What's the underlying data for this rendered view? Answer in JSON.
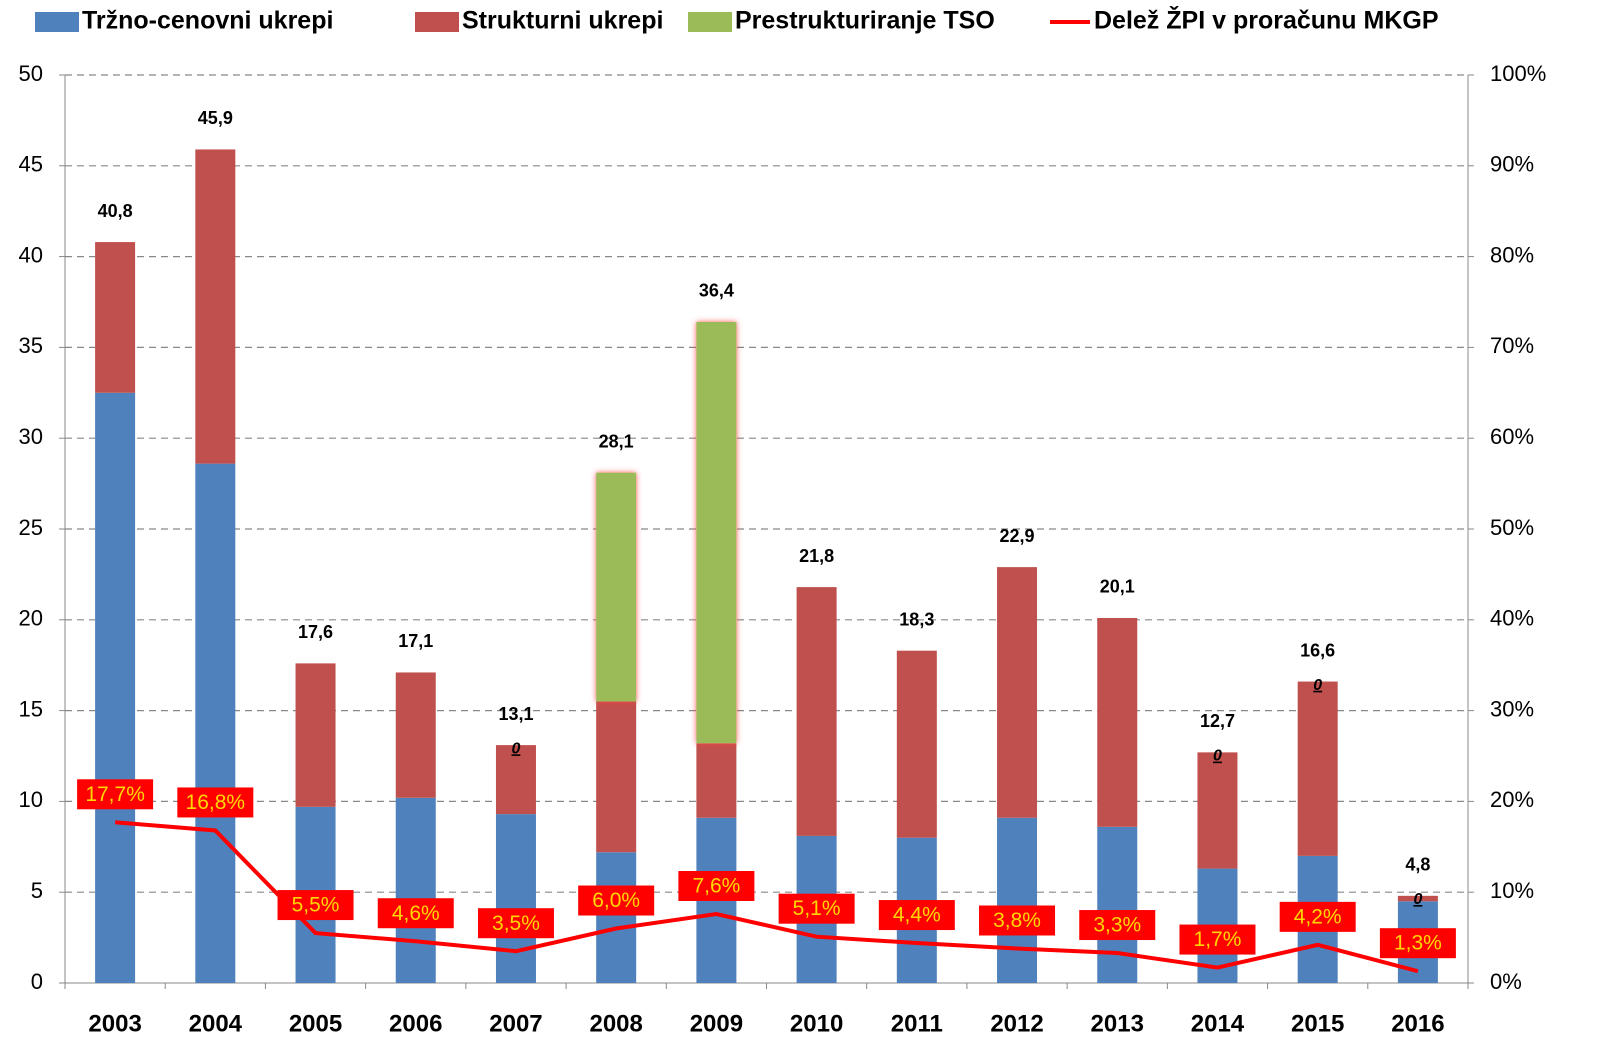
{
  "chart_data": {
    "type": "bar",
    "stacked": true,
    "categories": [
      "2003",
      "2004",
      "2005",
      "2006",
      "2007",
      "2008",
      "2009",
      "2010",
      "2011",
      "2012",
      "2013",
      "2014",
      "2015",
      "2016"
    ],
    "series": [
      {
        "name": "Tržno-cenovni ukrepi",
        "color": "#4f81bd",
        "values": [
          32.5,
          28.6,
          9.7,
          10.2,
          9.3,
          7.2,
          9.1,
          8.1,
          8.0,
          9.1,
          8.6,
          6.3,
          7.0,
          4.5
        ]
      },
      {
        "name": "Strukturni ukrepi",
        "color": "#c0504d",
        "values": [
          8.3,
          17.3,
          7.9,
          6.9,
          3.8,
          8.3,
          4.1,
          13.7,
          10.3,
          13.8,
          11.5,
          6.4,
          9.6,
          0.3
        ]
      },
      {
        "name": "Prestrukturiranje TSO",
        "color": "#9bbb59",
        "values": [
          null,
          null,
          null,
          null,
          0,
          12.6,
          23.2,
          null,
          null,
          null,
          null,
          0,
          0,
          0
        ],
        "value_labels": [
          null,
          null,
          null,
          null,
          "0",
          null,
          null,
          null,
          null,
          null,
          null,
          "0",
          "0",
          "0"
        ]
      },
      {
        "name": "Delež ŽPI v proračunu MKGP",
        "type": "line",
        "axis": "y2",
        "color": "#ff0000",
        "values": [
          17.7,
          16.8,
          5.5,
          4.6,
          3.5,
          6.0,
          7.6,
          5.1,
          4.4,
          3.8,
          3.3,
          1.7,
          4.2,
          1.3
        ],
        "value_labels": [
          "17,7%",
          "16,8%",
          "5,5%",
          "4,6%",
          "3,5%",
          "6,0%",
          "7,6%",
          "5,1%",
          "4,4%",
          "3,8%",
          "3,3%",
          "1,7%",
          "4,2%",
          "1,3%"
        ]
      }
    ],
    "totals": [
      40.8,
      45.9,
      17.6,
      17.1,
      13.1,
      28.1,
      36.4,
      21.8,
      18.3,
      22.9,
      20.1,
      12.7,
      16.6,
      4.8
    ],
    "total_labels": [
      "40,8",
      "45,9",
      "17,6",
      "17,1",
      "13,1",
      "28,1",
      "36,4",
      "21,8",
      "18,3",
      "22,9",
      "20,1",
      "12,7",
      "16,6",
      "4,8"
    ],
    "ylim": [
      0,
      50
    ],
    "yticks": [
      0,
      5,
      10,
      15,
      20,
      25,
      30,
      35,
      40,
      45,
      50
    ],
    "y2lim": [
      0,
      100
    ],
    "y2ticks": [
      {
        "value": 0,
        "label": "0%"
      },
      {
        "value": 10,
        "label": "10%"
      },
      {
        "value": 20,
        "label": "20%"
      },
      {
        "value": 30,
        "label": "30%"
      },
      {
        "value": 40,
        "label": "40%"
      },
      {
        "value": 50,
        "label": "50%"
      },
      {
        "value": 60,
        "label": "60%"
      },
      {
        "value": 70,
        "label": "70%"
      },
      {
        "value": 80,
        "label": "80%"
      },
      {
        "value": 90,
        "label": "90%"
      },
      {
        "value": 100,
        "label": "100%"
      }
    ],
    "grid": true,
    "legend": "top"
  }
}
